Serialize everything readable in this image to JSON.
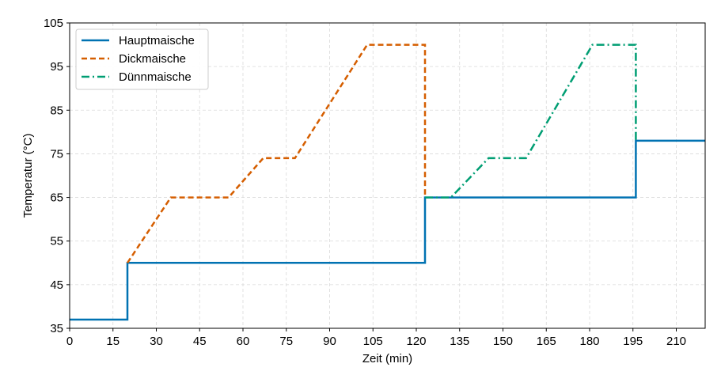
{
  "chart_data": {
    "type": "line",
    "title": "",
    "xlabel": "Zeit (min)",
    "ylabel": "Temperatur (°C)",
    "xlim": [
      0,
      220
    ],
    "ylim": [
      35,
      105
    ],
    "xticks": [
      0,
      15,
      30,
      45,
      60,
      75,
      90,
      105,
      120,
      135,
      150,
      165,
      180,
      195,
      210
    ],
    "yticks": [
      35,
      45,
      55,
      65,
      75,
      85,
      95,
      105
    ],
    "grid": true,
    "legend_position": "top-left",
    "series": [
      {
        "name": "Hauptmaische",
        "color": "#0072b2",
        "dash": "solid",
        "x": [
          0,
          20,
          20,
          123,
          123,
          196,
          196,
          220
        ],
        "y": [
          37,
          37,
          50,
          50,
          65,
          65,
          78,
          78
        ]
      },
      {
        "name": "Dickmaische",
        "color": "#d55e00",
        "dash": "dashed",
        "x": [
          20,
          35,
          55,
          67,
          78,
          103,
          123,
          123
        ],
        "y": [
          50,
          65,
          65,
          74,
          74,
          100,
          100,
          65
        ]
      },
      {
        "name": "Dünnmaische",
        "color": "#009e73",
        "dash": "dashdot",
        "x": [
          123,
          132,
          145,
          158,
          181,
          196,
          196
        ],
        "y": [
          65,
          65,
          74,
          74,
          100,
          100,
          78
        ]
      }
    ]
  }
}
